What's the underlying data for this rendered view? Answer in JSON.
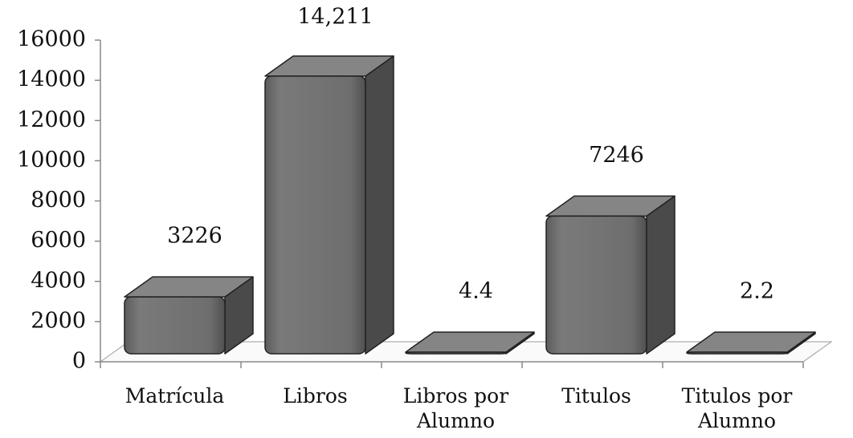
{
  "chart_data": {
    "type": "bar3d",
    "categories": [
      "Matrícula",
      "Libros",
      "Libros por Alumno",
      "Titulos",
      "Titulos por Alumno"
    ],
    "values": [
      3226,
      14211,
      4.4,
      7246,
      2.2
    ],
    "value_labels": [
      "3226",
      "14,211",
      "4.4",
      "7246",
      "2.2"
    ],
    "color": "#6e6e6e",
    "ylim": [
      0,
      16000
    ],
    "yticks": [
      0,
      2000,
      4000,
      6000,
      8000,
      10000,
      12000,
      14000,
      16000
    ]
  }
}
